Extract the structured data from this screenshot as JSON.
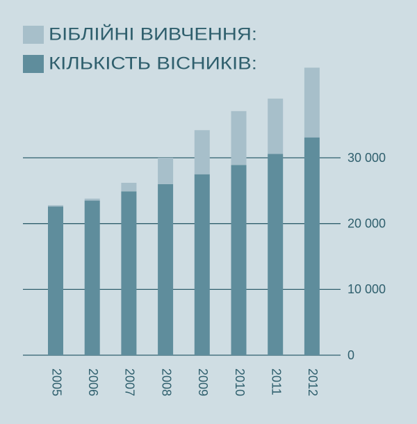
{
  "chart_data": {
    "type": "stacked_bar",
    "categories": [
      "2005",
      "2006",
      "2007",
      "2008",
      "2009",
      "2010",
      "2011",
      "2012"
    ],
    "series": [
      {
        "name": "КІЛЬКІСТЬ ВІСНИКІВ:",
        "color": "#5f8d9c",
        "values": [
          22600,
          23500,
          24900,
          26000,
          27500,
          28900,
          30600,
          33100
        ]
      },
      {
        "name": "БІБЛІЙНІ ВИВЧЕННЯ:",
        "color": "#a7bfca",
        "values": [
          200,
          300,
          1300,
          4000,
          6700,
          8200,
          8400,
          10600
        ]
      }
    ],
    "ylim": [
      0,
      44000
    ],
    "yticks": [
      0,
      {
        "value": 10000,
        "label": "10 000"
      },
      {
        "value": 20000,
        "label": "20 000"
      },
      {
        "value": 30000,
        "label": "30 000"
      }
    ],
    "grid": true
  }
}
